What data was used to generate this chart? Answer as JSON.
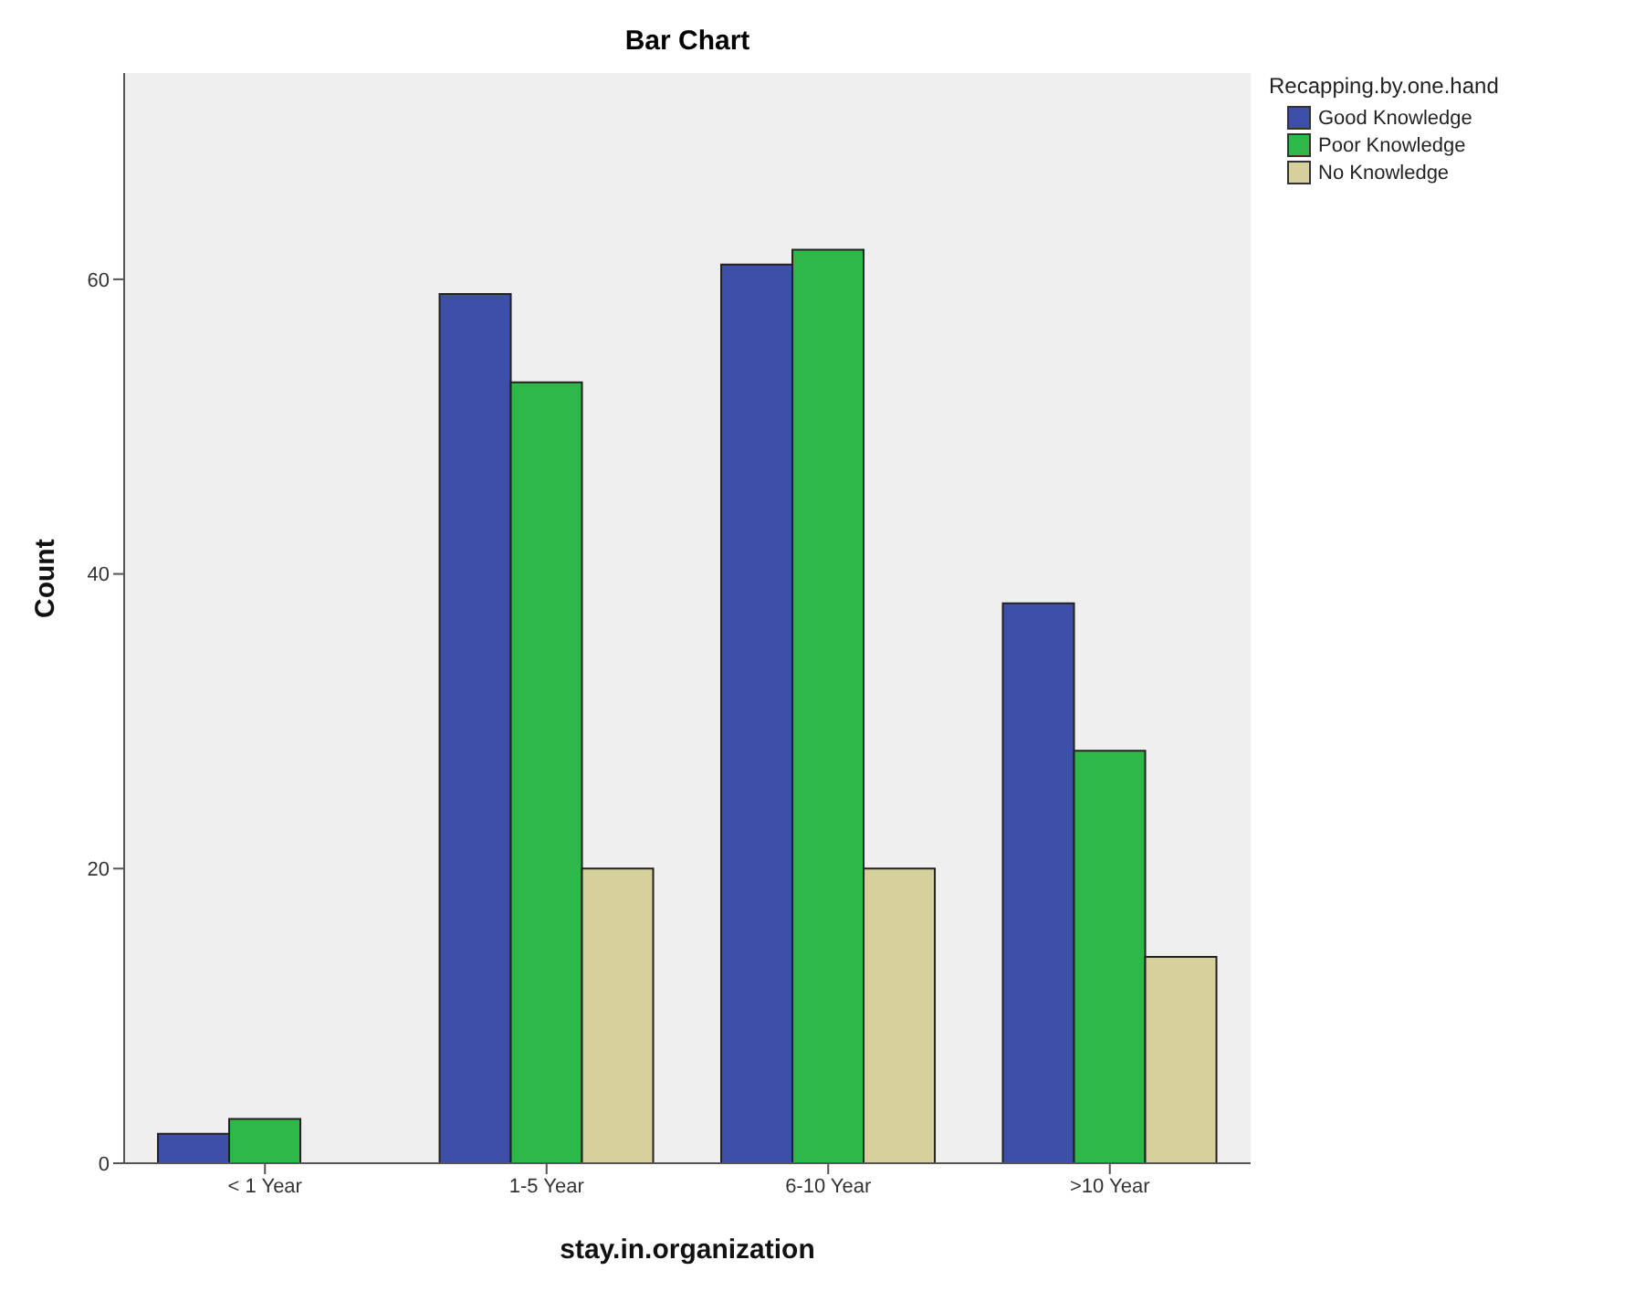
{
  "chart_data": {
    "type": "bar",
    "title": "Bar Chart",
    "xlabel": "stay.in.organization",
    "ylabel": "Count",
    "legend_title": "Recapping.by.one.hand",
    "categories": [
      "< 1 Year",
      "1-5 Year",
      "6-10 Year",
      ">10 Year"
    ],
    "series": [
      {
        "name": "Good Knowledge",
        "color": "#3d4fa8",
        "values": [
          2,
          59,
          61,
          38
        ]
      },
      {
        "name": "Poor Knowledge",
        "color": "#2eb84a",
        "values": [
          3,
          53,
          62,
          28
        ]
      },
      {
        "name": "No Knowledge",
        "color": "#d6d09c",
        "values": [
          0,
          20,
          20,
          14
        ]
      }
    ],
    "ylim": [
      0,
      74
    ],
    "yticks": [
      0,
      20,
      40,
      60
    ],
    "grid": false,
    "legend": "top right"
  }
}
